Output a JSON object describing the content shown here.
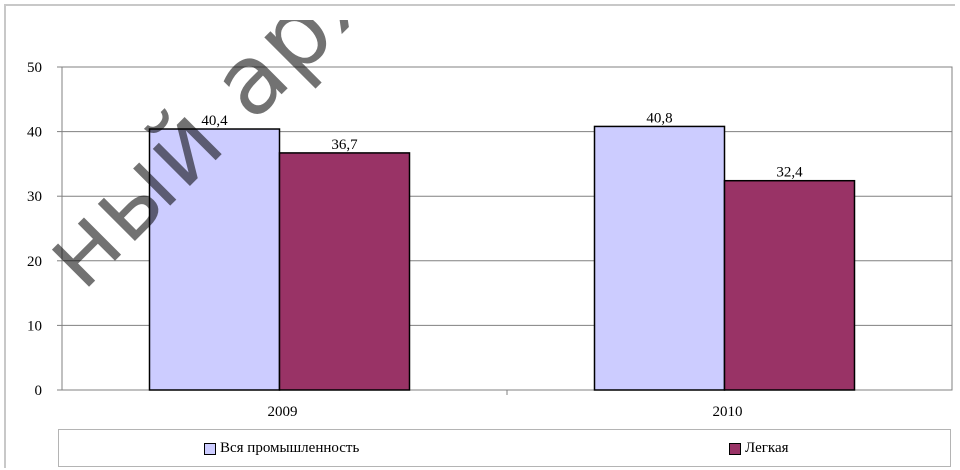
{
  "chart_data": {
    "type": "bar",
    "categories": [
      "2009",
      "2010"
    ],
    "series": [
      {
        "name": "Вся промышленность",
        "values": [
          40.4,
          40.8
        ],
        "labels": [
          "40,4",
          "40,8"
        ],
        "color": "#ccccff"
      },
      {
        "name": "Легкая",
        "values": [
          36.7,
          32.4
        ],
        "labels": [
          "36,7",
          "32,4"
        ],
        "color": "#993366"
      }
    ],
    "ylim": [
      0,
      50
    ],
    "yticks": [
      0,
      10,
      20,
      30,
      40,
      50
    ],
    "grid": true,
    "legend_position": "bottom",
    "title": "",
    "xlabel": "",
    "ylabel": ""
  },
  "watermark": {
    "text": "ный архив библ"
  }
}
